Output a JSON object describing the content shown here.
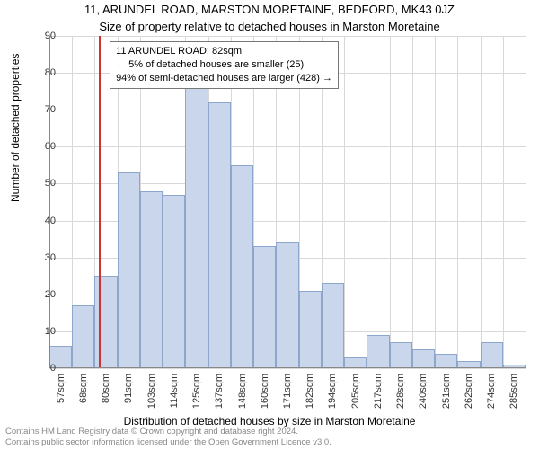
{
  "titles": {
    "main": "11, ARUNDEL ROAD, MARSTON MORETAINE, BEDFORD, MK43 0JZ",
    "sub": "Size of property relative to detached houses in Marston Moretaine"
  },
  "axes": {
    "xlabel": "Distribution of detached houses by size in Marston Moretaine",
    "ylabel": "Number of detached properties",
    "ylim": [
      0,
      90
    ],
    "ytick_step": 10,
    "x_categories": [
      "57sqm",
      "68sqm",
      "80sqm",
      "91sqm",
      "103sqm",
      "114sqm",
      "125sqm",
      "137sqm",
      "148sqm",
      "160sqm",
      "171sqm",
      "182sqm",
      "194sqm",
      "205sqm",
      "217sqm",
      "228sqm",
      "240sqm",
      "251sqm",
      "262sqm",
      "274sqm",
      "285sqm"
    ]
  },
  "chart": {
    "type": "histogram",
    "bar_fill": "#c9d6ec",
    "bar_border": "#8fa6cc",
    "grid_color": "#d8d8d8",
    "background": "#ffffff",
    "marker_color": "#c33",
    "marker_x_sqm": 82,
    "values": [
      6,
      17,
      25,
      53,
      48,
      47,
      78,
      72,
      55,
      33,
      34,
      21,
      23,
      3,
      9,
      7,
      5,
      4,
      2,
      7,
      1
    ]
  },
  "info_box": {
    "line1": "11 ARUNDEL ROAD: 82sqm",
    "line2": "← 5% of detached houses are smaller (25)",
    "line3": "94% of semi-detached houses are larger (428) →"
  },
  "footer": {
    "l1": "Contains HM Land Registry data © Crown copyright and database right 2024.",
    "l2": "Contains public sector information licensed under the Open Government Licence v3.0."
  }
}
